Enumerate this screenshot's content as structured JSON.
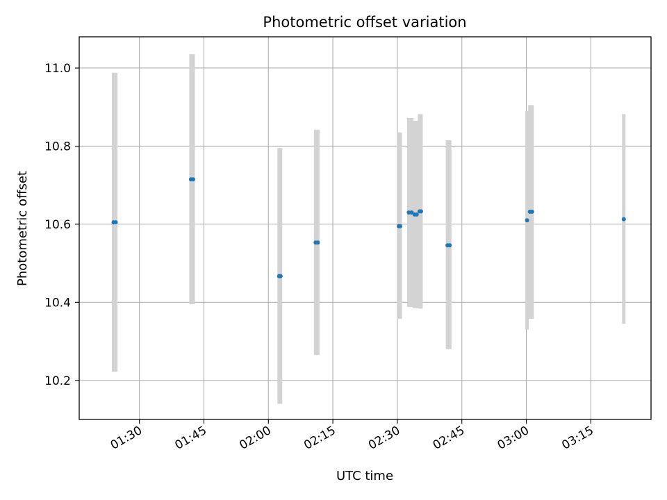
{
  "chart_data": {
    "type": "scatter",
    "title": "Photometric offset variation",
    "xlabel": "UTC time",
    "ylabel": "Photometric offset",
    "x_tick_labels": [
      "01:30",
      "01:45",
      "02:00",
      "02:15",
      "02:30",
      "02:45",
      "03:00",
      "03:15"
    ],
    "x_ticks": [
      "01:30",
      "01:45",
      "02:00",
      "02:15",
      "02:30",
      "02:45",
      "03:00",
      "03:15"
    ],
    "xlim": [
      "01:16",
      "03:29"
    ],
    "ylim": [
      10.1,
      11.08
    ],
    "y_ticks": [
      10.2,
      10.4,
      10.6,
      10.8,
      11.0
    ],
    "y_tick_labels": [
      "10.2",
      "10.4",
      "10.6",
      "10.8",
      "11.0"
    ],
    "grid": true,
    "x_tick_rotation_deg": 30,
    "colors": {
      "points": "#1f77b4",
      "error_bars": "#d3d3d3",
      "grid": "#b0b0b0"
    },
    "points": [
      {
        "x": "01:24:00",
        "y": 10.605,
        "ymin": 10.222,
        "ymax": 10.988
      },
      {
        "x": "01:24:30",
        "y": 10.605,
        "ymin": 10.222,
        "ymax": 10.988
      },
      {
        "x": "01:42:00",
        "y": 10.715,
        "ymin": 10.395,
        "ymax": 11.035
      },
      {
        "x": "01:42:30",
        "y": 10.715,
        "ymin": 10.395,
        "ymax": 11.035
      },
      {
        "x": "02:02:30",
        "y": 10.467,
        "ymin": 10.14,
        "ymax": 10.795
      },
      {
        "x": "02:02:50",
        "y": 10.467,
        "ymin": 10.14,
        "ymax": 10.795
      },
      {
        "x": "02:11:00",
        "y": 10.553,
        "ymin": 10.265,
        "ymax": 10.842
      },
      {
        "x": "02:11:30",
        "y": 10.553,
        "ymin": 10.265,
        "ymax": 10.842
      },
      {
        "x": "02:30:20",
        "y": 10.595,
        "ymin": 10.358,
        "ymax": 10.835
      },
      {
        "x": "02:30:40",
        "y": 10.595,
        "ymin": 10.358,
        "ymax": 10.835
      },
      {
        "x": "02:32:40",
        "y": 10.63,
        "ymin": 10.388,
        "ymax": 10.872
      },
      {
        "x": "02:33:20",
        "y": 10.63,
        "ymin": 10.388,
        "ymax": 10.872
      },
      {
        "x": "02:34:00",
        "y": 10.625,
        "ymin": 10.385,
        "ymax": 10.865
      },
      {
        "x": "02:34:30",
        "y": 10.625,
        "ymin": 10.385,
        "ymax": 10.865
      },
      {
        "x": "02:35:10",
        "y": 10.633,
        "ymin": 10.384,
        "ymax": 10.882
      },
      {
        "x": "02:35:30",
        "y": 10.633,
        "ymin": 10.384,
        "ymax": 10.882
      },
      {
        "x": "02:41:40",
        "y": 10.546,
        "ymin": 10.28,
        "ymax": 10.815
      },
      {
        "x": "02:42:10",
        "y": 10.546,
        "ymin": 10.28,
        "ymax": 10.815
      },
      {
        "x": "03:00:10",
        "y": 10.61,
        "ymin": 10.33,
        "ymax": 10.89
      },
      {
        "x": "03:00:50",
        "y": 10.632,
        "ymin": 10.358,
        "ymax": 10.905
      },
      {
        "x": "03:01:20",
        "y": 10.632,
        "ymin": 10.358,
        "ymax": 10.905
      },
      {
        "x": "03:22:40",
        "y": 10.613,
        "ymin": 10.345,
        "ymax": 10.882
      }
    ]
  }
}
